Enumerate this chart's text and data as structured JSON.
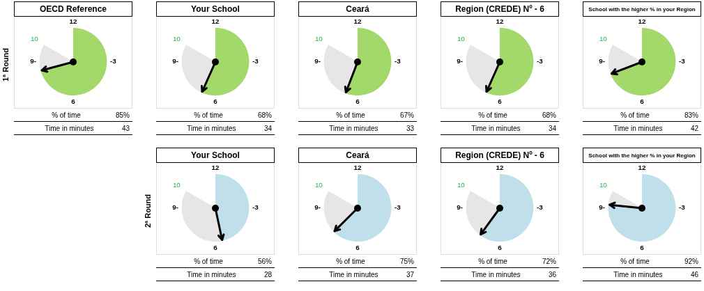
{
  "chart_data": [
    {
      "type": "pie",
      "title": "OECD Reference",
      "categories": [
        null,
        null
      ],
      "values": [
        85,
        15
      ],
      "colors": [
        "#a3d86a",
        "#e6e6e6"
      ],
      "legend": false,
      "annotations": [
        "12",
        "-3",
        "6",
        "9-",
        "10",
        "% of time",
        "85%",
        "Time in minutes",
        "43",
        "1ª Round"
      ]
    },
    {
      "type": "pie",
      "title": "Your School",
      "categories": [
        null,
        null
      ],
      "values": [
        68,
        32
      ],
      "colors": [
        "#a3d86a",
        "#e6e6e6"
      ],
      "legend": false,
      "annotations": [
        "12",
        "-3",
        "6",
        "9-",
        "10",
        "% of time",
        "68%",
        "Time in minutes",
        "34"
      ]
    },
    {
      "type": "pie",
      "title": "Ceará",
      "categories": [
        null,
        null
      ],
      "values": [
        67,
        33
      ],
      "colors": [
        "#a3d86a",
        "#e6e6e6"
      ],
      "legend": false,
      "annotations": [
        "12",
        "-3",
        "6",
        "9-",
        "10",
        "% of time",
        "67%",
        "Time in minutes",
        "33"
      ]
    },
    {
      "type": "pie",
      "title": "Region (CREDE) Nº  -  6",
      "categories": [
        null,
        null
      ],
      "values": [
        68,
        32
      ],
      "colors": [
        "#a3d86a",
        "#e6e6e6"
      ],
      "legend": false,
      "annotations": [
        "12",
        "-3",
        "6",
        "9-",
        "10",
        "% of time",
        "68%",
        "Time in minutes",
        "34"
      ]
    },
    {
      "type": "pie",
      "title": "School with the higher % in your Region",
      "categories": [
        null,
        null
      ],
      "values": [
        83,
        17
      ],
      "colors": [
        "#a3d86a",
        "#e6e6e6"
      ],
      "legend": false,
      "annotations": [
        "12",
        "-3",
        "6",
        "9-",
        "10",
        "% of time",
        "83%",
        "Time in minutes",
        "42"
      ]
    },
    {
      "type": "pie",
      "title": "Your School",
      "categories": [
        null,
        null
      ],
      "values": [
        56,
        44
      ],
      "colors": [
        "#bfe0ea",
        "#e6e6e6"
      ],
      "legend": false,
      "annotations": [
        "12",
        "-3",
        "6",
        "9-",
        "10",
        "% of time",
        "56%",
        "Time in minutes",
        "28",
        "2ª Round"
      ]
    },
    {
      "type": "pie",
      "title": "Ceará",
      "categories": [
        null,
        null
      ],
      "values": [
        75,
        25
      ],
      "colors": [
        "#bfe0ea",
        "#e6e6e6"
      ],
      "legend": false,
      "annotations": [
        "12",
        "-3",
        "6",
        "9-",
        "10",
        "% of time",
        "75%",
        "Time in minutes",
        "37"
      ]
    },
    {
      "type": "pie",
      "title": "Region (CREDE) Nº  -  6",
      "categories": [
        null,
        null
      ],
      "values": [
        72,
        28
      ],
      "colors": [
        "#bfe0ea",
        "#e6e6e6"
      ],
      "legend": false,
      "annotations": [
        "12",
        "-3",
        "6",
        "9-",
        "10",
        "% of time",
        "72%",
        "Time in minutes",
        "36"
      ]
    },
    {
      "type": "pie",
      "title": "School with the higher % in your Region",
      "categories": [
        null,
        null
      ],
      "values": [
        92,
        8
      ],
      "colors": [
        "#bfe0ea",
        "#e6e6e6"
      ],
      "legend": false,
      "annotations": [
        "12",
        "-3",
        "6",
        "9-",
        "10",
        "% of time",
        "92%",
        "Time in minutes",
        "46"
      ]
    }
  ]
}
